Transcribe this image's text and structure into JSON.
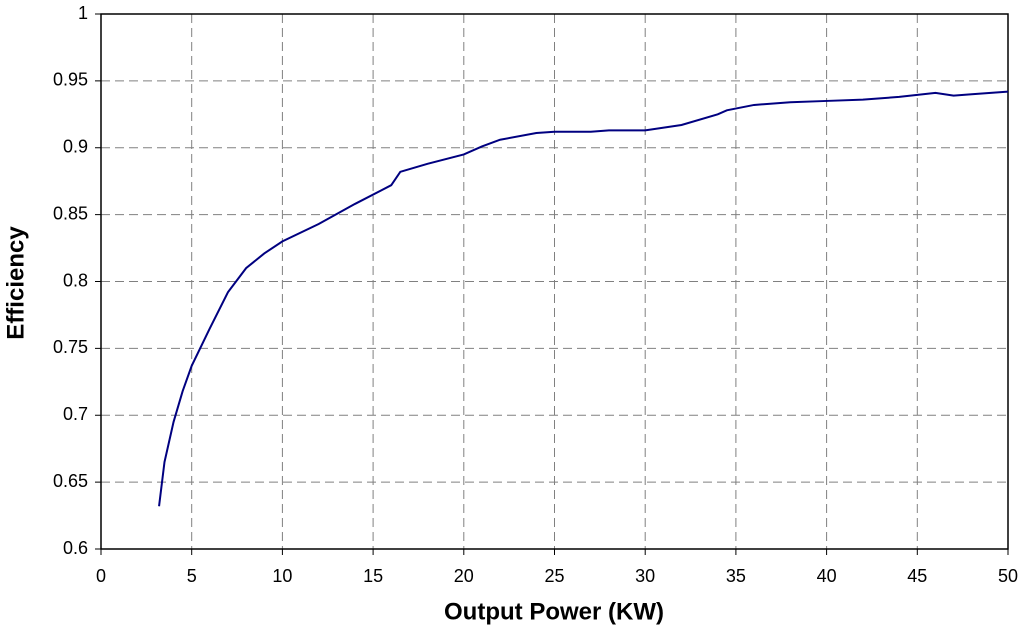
{
  "chart_data": {
    "type": "line",
    "x_label": "Output Power (KW)",
    "y_label": "Efficiency",
    "x": [
      3.2,
      3.5,
      4,
      4.5,
      5,
      6,
      7,
      8,
      9,
      10,
      12,
      14,
      16,
      16.5,
      18,
      20,
      21,
      22,
      24,
      25,
      27,
      28,
      30,
      32,
      34,
      34.5,
      36,
      38,
      40,
      42,
      44,
      46,
      47,
      48,
      50
    ],
    "series": [
      {
        "color": "#000080",
        "values": [
          0.632,
          0.665,
          0.695,
          0.718,
          0.737,
          0.765,
          0.792,
          0.81,
          0.821,
          0.83,
          0.843,
          0.858,
          0.872,
          0.882,
          0.888,
          0.895,
          0.901,
          0.906,
          0.911,
          0.912,
          0.912,
          0.913,
          0.913,
          0.917,
          0.925,
          0.928,
          0.932,
          0.934,
          0.935,
          0.936,
          0.938,
          0.941,
          0.939,
          0.94,
          0.942
        ]
      }
    ],
    "xlim": [
      0,
      50
    ],
    "xticks": [
      0,
      5,
      10,
      15,
      20,
      25,
      30,
      35,
      40,
      45,
      50
    ],
    "ylim": [
      0.6,
      1
    ],
    "yticks": [
      0.6,
      0.65,
      0.7,
      0.75,
      0.8,
      0.85,
      0.9,
      0.95,
      1
    ],
    "grid": true
  }
}
